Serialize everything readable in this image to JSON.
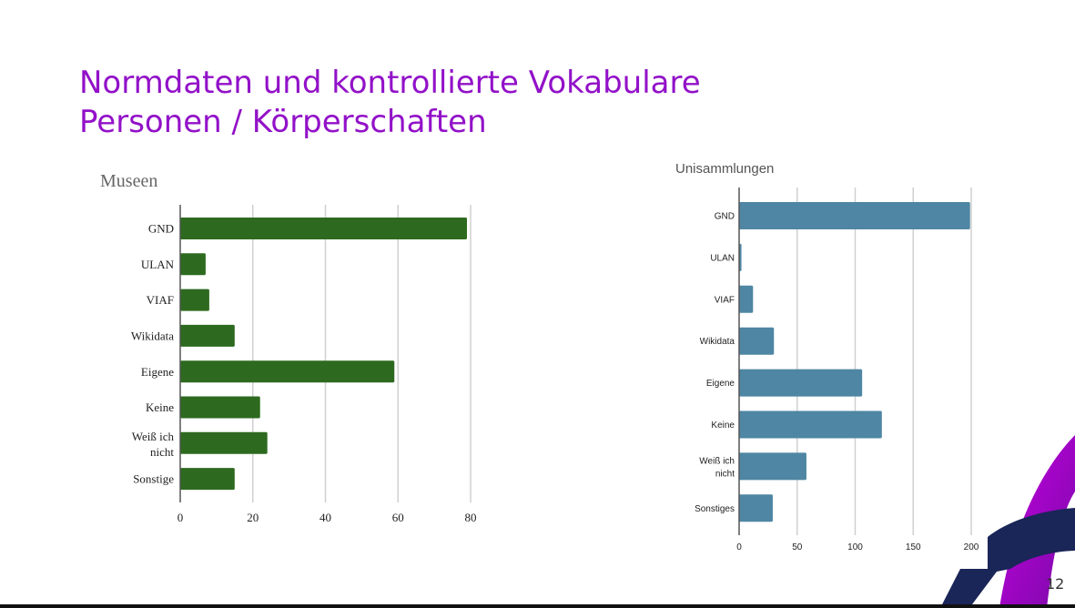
{
  "slide": {
    "title_line1": "Normdaten und kontrollierte Vokabulare",
    "title_line2": "Personen / Körperschaften",
    "page_number": "12",
    "title_color": "#9211c8"
  },
  "chart_data": [
    {
      "type": "bar",
      "orientation": "horizontal",
      "title": "Museen",
      "categories": [
        "GND",
        "ULAN",
        "VIAF",
        "Wikidata",
        "Eigene",
        "Keine",
        "Weiß ich nicht",
        "Sonstige"
      ],
      "values": [
        79,
        7,
        8,
        15,
        59,
        22,
        24,
        15
      ],
      "xlim": [
        0,
        80
      ],
      "xticks": [
        0,
        20,
        40,
        60,
        80
      ],
      "grid": true,
      "color": "#2d6a1f"
    },
    {
      "type": "bar",
      "orientation": "horizontal",
      "title": "Unisammlungen",
      "categories": [
        "GND",
        "ULAN",
        "VIAF",
        "Wikidata",
        "Eigene",
        "Keine",
        "Weiß ich nicht",
        "Sonstiges"
      ],
      "values": [
        199,
        2,
        12,
        30,
        106,
        123,
        58,
        29
      ],
      "xlim": [
        0,
        200
      ],
      "xticks": [
        0,
        50,
        100,
        150,
        200
      ],
      "grid": true,
      "color": "#4e86a3"
    }
  ]
}
